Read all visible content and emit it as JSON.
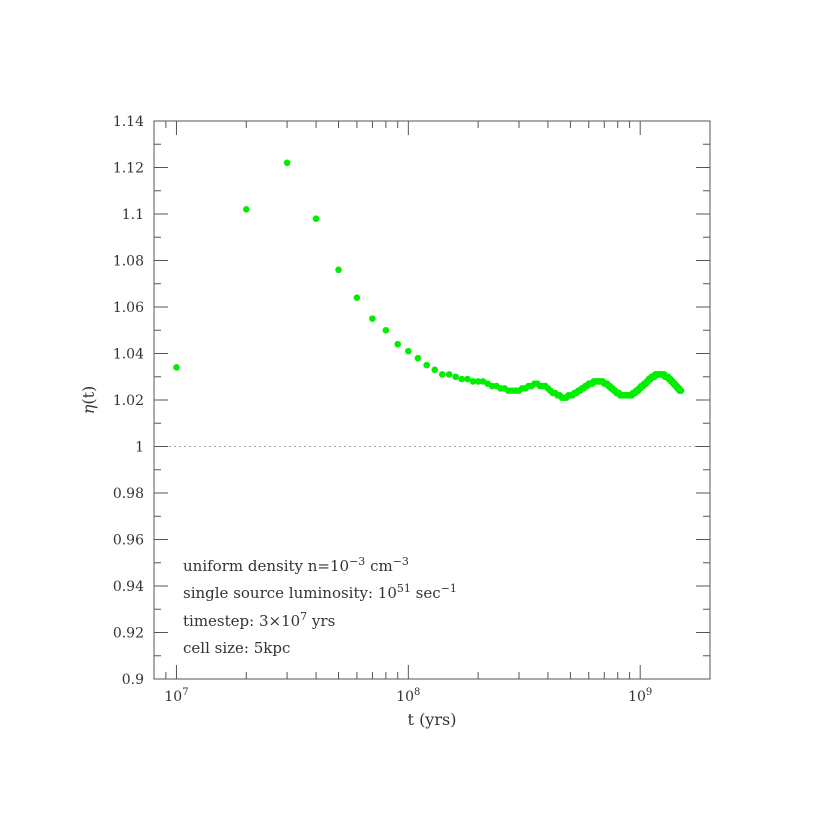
{
  "chart_data": {
    "type": "scatter",
    "xlabel": "t (yrs)",
    "ylabel_symbol": "η",
    "ylabel_rest": "(t)",
    "x_scale": "log",
    "xlim": [
      8000000,
      2000000000
    ],
    "ylim": [
      0.9,
      1.14
    ],
    "x_ticks": [
      {
        "base": "10",
        "exp": "7",
        "value": 10000000
      },
      {
        "base": "10",
        "exp": "8",
        "value": 100000000
      },
      {
        "base": "10",
        "exp": "9",
        "value": 1000000000
      }
    ],
    "y_ticks": [
      {
        "label": "0.9",
        "value": 0.9
      },
      {
        "label": "0.92",
        "value": 0.92
      },
      {
        "label": "0.94",
        "value": 0.94
      },
      {
        "label": "0.96",
        "value": 0.96
      },
      {
        "label": "0.98",
        "value": 0.98
      },
      {
        "label": "1",
        "value": 1.0
      },
      {
        "label": "1.02",
        "value": 1.02
      },
      {
        "label": "1.04",
        "value": 1.04
      },
      {
        "label": "1.06",
        "value": 1.06
      },
      {
        "label": "1.08",
        "value": 1.08
      },
      {
        "label": "1.1",
        "value": 1.1
      },
      {
        "label": "1.12",
        "value": 1.12
      },
      {
        "label": "1.14",
        "value": 1.14
      }
    ],
    "reference_line": 1.0,
    "marker_color": "#00ee00",
    "annotations": [
      {
        "parts": [
          {
            "t": "uniform density n=10"
          },
          {
            "t": "−3",
            "sup": true
          },
          {
            "t": " cm"
          },
          {
            "t": "−3",
            "sup": true
          }
        ]
      },
      {
        "parts": [
          {
            "t": "single source luminosity: 10"
          },
          {
            "t": "51",
            "sup": true
          },
          {
            "t": " sec"
          },
          {
            "t": "−1",
            "sup": true
          }
        ]
      },
      {
        "parts": [
          {
            "t": "timestep: 3×10"
          },
          {
            "t": "7",
            "sup": true
          },
          {
            "t": " yrs"
          }
        ]
      },
      {
        "parts": [
          {
            "t": "cell size: 5kpc"
          }
        ]
      }
    ],
    "series": [
      {
        "points": [
          [
            10000000,
            1.034
          ],
          [
            20000000,
            1.102
          ],
          [
            30000000,
            1.122
          ],
          [
            40000000,
            1.098
          ],
          [
            50000000,
            1.076
          ],
          [
            60000000,
            1.064
          ],
          [
            70000000,
            1.055
          ],
          [
            80000000,
            1.05
          ],
          [
            90000000,
            1.044
          ],
          [
            100000000,
            1.041
          ],
          [
            110000000,
            1.038
          ],
          [
            120000000,
            1.035
          ],
          [
            130000000,
            1.033
          ],
          [
            140000000,
            1.031
          ],
          [
            150000000,
            1.031
          ],
          [
            160000000,
            1.03
          ],
          [
            170000000,
            1.029
          ],
          [
            180000000,
            1.029
          ],
          [
            190000000,
            1.028
          ],
          [
            200000000,
            1.028
          ],
          [
            210000000,
            1.028
          ],
          [
            220000000,
            1.027
          ],
          [
            230000000,
            1.026
          ],
          [
            240000000,
            1.026
          ],
          [
            250000000,
            1.025
          ],
          [
            260000000,
            1.025
          ],
          [
            270000000,
            1.024
          ],
          [
            280000000,
            1.024
          ],
          [
            290000000,
            1.024
          ],
          [
            300000000,
            1.024
          ],
          [
            310000000,
            1.025
          ],
          [
            320000000,
            1.025
          ],
          [
            330000000,
            1.026
          ],
          [
            340000000,
            1.026
          ],
          [
            350000000,
            1.027
          ],
          [
            360000000,
            1.027
          ],
          [
            370000000,
            1.026
          ],
          [
            380000000,
            1.026
          ],
          [
            390000000,
            1.026
          ],
          [
            400000000,
            1.025
          ],
          [
            410000000,
            1.024
          ],
          [
            420000000,
            1.023
          ],
          [
            430000000,
            1.023
          ],
          [
            440000000,
            1.022
          ],
          [
            450000000,
            1.022
          ],
          [
            460000000,
            1.021
          ],
          [
            470000000,
            1.021
          ],
          [
            480000000,
            1.021
          ],
          [
            490000000,
            1.022
          ],
          [
            500000000,
            1.022
          ],
          [
            510000000,
            1.022
          ],
          [
            520000000,
            1.023
          ],
          [
            530000000,
            1.023
          ],
          [
            540000000,
            1.024
          ],
          [
            550000000,
            1.024
          ],
          [
            560000000,
            1.025
          ],
          [
            570000000,
            1.025
          ],
          [
            580000000,
            1.026
          ],
          [
            590000000,
            1.026
          ],
          [
            600000000,
            1.027
          ],
          [
            610000000,
            1.027
          ],
          [
            620000000,
            1.027
          ],
          [
            630000000,
            1.028
          ],
          [
            640000000,
            1.028
          ],
          [
            650000000,
            1.028
          ],
          [
            660000000,
            1.028
          ],
          [
            670000000,
            1.028
          ],
          [
            680000000,
            1.028
          ],
          [
            690000000,
            1.028
          ],
          [
            700000000,
            1.027
          ],
          [
            710000000,
            1.027
          ],
          [
            720000000,
            1.027
          ],
          [
            730000000,
            1.026
          ],
          [
            740000000,
            1.026
          ],
          [
            750000000,
            1.025
          ],
          [
            760000000,
            1.025
          ],
          [
            770000000,
            1.024
          ],
          [
            780000000,
            1.024
          ],
          [
            790000000,
            1.023
          ],
          [
            800000000,
            1.023
          ],
          [
            810000000,
            1.023
          ],
          [
            820000000,
            1.022
          ],
          [
            830000000,
            1.022
          ],
          [
            840000000,
            1.022
          ],
          [
            850000000,
            1.022
          ],
          [
            860000000,
            1.022
          ],
          [
            870000000,
            1.022
          ],
          [
            880000000,
            1.022
          ],
          [
            890000000,
            1.022
          ],
          [
            900000000,
            1.022
          ],
          [
            910000000,
            1.022
          ],
          [
            920000000,
            1.022
          ],
          [
            930000000,
            1.023
          ],
          [
            940000000,
            1.023
          ],
          [
            950000000,
            1.023
          ],
          [
            960000000,
            1.024
          ],
          [
            970000000,
            1.024
          ],
          [
            980000000,
            1.024
          ],
          [
            990000000,
            1.025
          ],
          [
            1000000000,
            1.025
          ],
          [
            1010000000,
            1.026
          ],
          [
            1020000000,
            1.026
          ],
          [
            1030000000,
            1.026
          ],
          [
            1040000000,
            1.027
          ],
          [
            1050000000,
            1.027
          ],
          [
            1060000000,
            1.027
          ],
          [
            1070000000,
            1.028
          ],
          [
            1080000000,
            1.028
          ],
          [
            1090000000,
            1.029
          ],
          [
            1100000000,
            1.029
          ],
          [
            1110000000,
            1.029
          ],
          [
            1120000000,
            1.03
          ],
          [
            1130000000,
            1.03
          ],
          [
            1140000000,
            1.03
          ],
          [
            1150000000,
            1.03
          ],
          [
            1160000000,
            1.031
          ],
          [
            1170000000,
            1.031
          ],
          [
            1180000000,
            1.031
          ],
          [
            1190000000,
            1.031
          ],
          [
            1200000000,
            1.031
          ],
          [
            1210000000,
            1.031
          ],
          [
            1220000000,
            1.031
          ],
          [
            1230000000,
            1.031
          ],
          [
            1240000000,
            1.031
          ],
          [
            1250000000,
            1.031
          ],
          [
            1260000000,
            1.031
          ],
          [
            1270000000,
            1.031
          ],
          [
            1280000000,
            1.03
          ],
          [
            1290000000,
            1.03
          ],
          [
            1300000000,
            1.03
          ],
          [
            1310000000,
            1.03
          ],
          [
            1320000000,
            1.03
          ],
          [
            1330000000,
            1.029
          ],
          [
            1340000000,
            1.029
          ],
          [
            1350000000,
            1.029
          ],
          [
            1360000000,
            1.028
          ],
          [
            1370000000,
            1.028
          ],
          [
            1380000000,
            1.028
          ],
          [
            1390000000,
            1.027
          ],
          [
            1400000000,
            1.027
          ],
          [
            1410000000,
            1.027
          ],
          [
            1420000000,
            1.026
          ],
          [
            1430000000,
            1.026
          ],
          [
            1440000000,
            1.026
          ],
          [
            1450000000,
            1.025
          ],
          [
            1460000000,
            1.025
          ],
          [
            1470000000,
            1.025
          ],
          [
            1480000000,
            1.024
          ],
          [
            1490000000,
            1.024
          ],
          [
            1500000000,
            1.024
          ]
        ]
      }
    ]
  }
}
